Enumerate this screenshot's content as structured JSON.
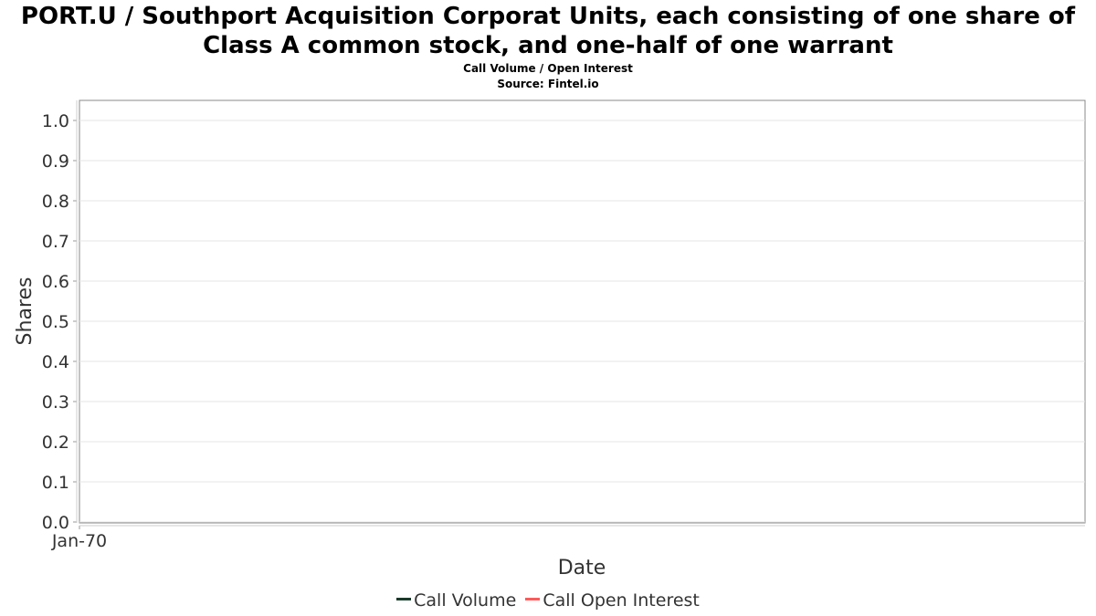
{
  "chart_data": {
    "type": "line",
    "title": "PORT.U / Southport Acquisition Corporat Units, each consisting of one share of Class A common stock, and one-half of one warrant",
    "title_line1": "PORT.U / Southport Acquisition Corporat Units, each consisting of one share of",
    "title_line2": "Class A common stock, and one-half of one warrant",
    "subtitle": "Call Volume / Open Interest",
    "source": "Source: Fintel.io",
    "xlabel": "Date",
    "ylabel": "Shares",
    "x_ticks": [
      "Jan-70"
    ],
    "y_ticks": [
      "0.0",
      "0.1",
      "0.2",
      "0.3",
      "0.4",
      "0.5",
      "0.6",
      "0.7",
      "0.8",
      "0.9",
      "1.0"
    ],
    "ylim": [
      0,
      1.0
    ],
    "grid": true,
    "legend_position": "bottom",
    "series": [
      {
        "name": "Call Volume",
        "color": "#1a3a2a",
        "values": []
      },
      {
        "name": "Call Open Interest",
        "color": "#ff5a5a",
        "values": []
      }
    ]
  }
}
